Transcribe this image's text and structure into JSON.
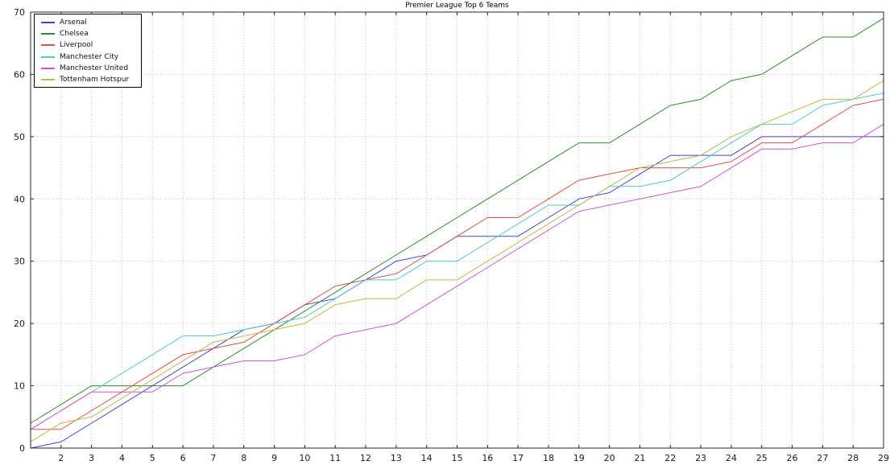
{
  "chart_data": {
    "type": "line",
    "title": "Premier League Top 6 Teams",
    "xlabel": "",
    "ylabel": "",
    "xlim": [
      1,
      29
    ],
    "ylim": [
      0,
      70
    ],
    "xticks": [
      2,
      3,
      4,
      5,
      6,
      7,
      8,
      9,
      10,
      11,
      12,
      13,
      14,
      15,
      16,
      17,
      18,
      19,
      20,
      21,
      22,
      23,
      24,
      25,
      26,
      27,
      28,
      29
    ],
    "yticks": [
      0,
      10,
      20,
      30,
      40,
      50,
      60,
      70
    ],
    "grid": true,
    "grid_style": "dotted",
    "legend_position": "upper-left",
    "x": [
      1,
      2,
      3,
      4,
      5,
      6,
      7,
      8,
      9,
      10,
      11,
      12,
      13,
      14,
      15,
      16,
      17,
      18,
      19,
      20,
      21,
      22,
      23,
      24,
      25,
      26,
      27,
      28,
      29
    ],
    "series": [
      {
        "name": "Arsenal",
        "color": "#4444cc",
        "values": [
          0,
          1,
          4,
          7,
          10,
          13,
          16,
          19,
          20,
          23,
          24,
          27,
          30,
          31,
          34,
          34,
          34,
          37,
          40,
          41,
          44,
          47,
          47,
          47,
          50,
          50,
          50,
          50,
          50
        ]
      },
      {
        "name": "Chelsea",
        "color": "#2e8b2e",
        "values": [
          4,
          7,
          10,
          10,
          10,
          10,
          13,
          16,
          19,
          22,
          25,
          28,
          31,
          34,
          37,
          40,
          43,
          46,
          49,
          49,
          52,
          55,
          56,
          59,
          60,
          63,
          66,
          66,
          69
        ]
      },
      {
        "name": "Liverpool",
        "color": "#e04b4b",
        "values": [
          3,
          3,
          6,
          9,
          12,
          15,
          16,
          17,
          20,
          23,
          26,
          27,
          28,
          31,
          34,
          37,
          37,
          40,
          43,
          44,
          45,
          45,
          45,
          46,
          49,
          49,
          52,
          55,
          56
        ]
      },
      {
        "name": "Manchester City",
        "color": "#52c6ca",
        "values": [
          3,
          6,
          9,
          12,
          15,
          18,
          18,
          19,
          20,
          21,
          24,
          27,
          27,
          30,
          30,
          33,
          36,
          39,
          39,
          42,
          42,
          43,
          46,
          49,
          52,
          52,
          55,
          56,
          57
        ]
      },
      {
        "name": "Manchester United",
        "color": "#cc55cc",
        "values": [
          3,
          6,
          9,
          9,
          9,
          12,
          13,
          14,
          14,
          15,
          18,
          19,
          20,
          23,
          26,
          29,
          32,
          35,
          38,
          39,
          40,
          41,
          42,
          45,
          48,
          48,
          49,
          49,
          52
        ]
      },
      {
        "name": "Tottenham Hotspur",
        "color": "#c2b84a",
        "values": [
          1,
          4,
          5,
          8,
          11,
          14,
          17,
          18,
          19,
          20,
          23,
          24,
          24,
          27,
          27,
          30,
          33,
          36,
          39,
          42,
          45,
          46,
          47,
          50,
          52,
          54,
          56,
          56,
          59
        ]
      }
    ]
  }
}
